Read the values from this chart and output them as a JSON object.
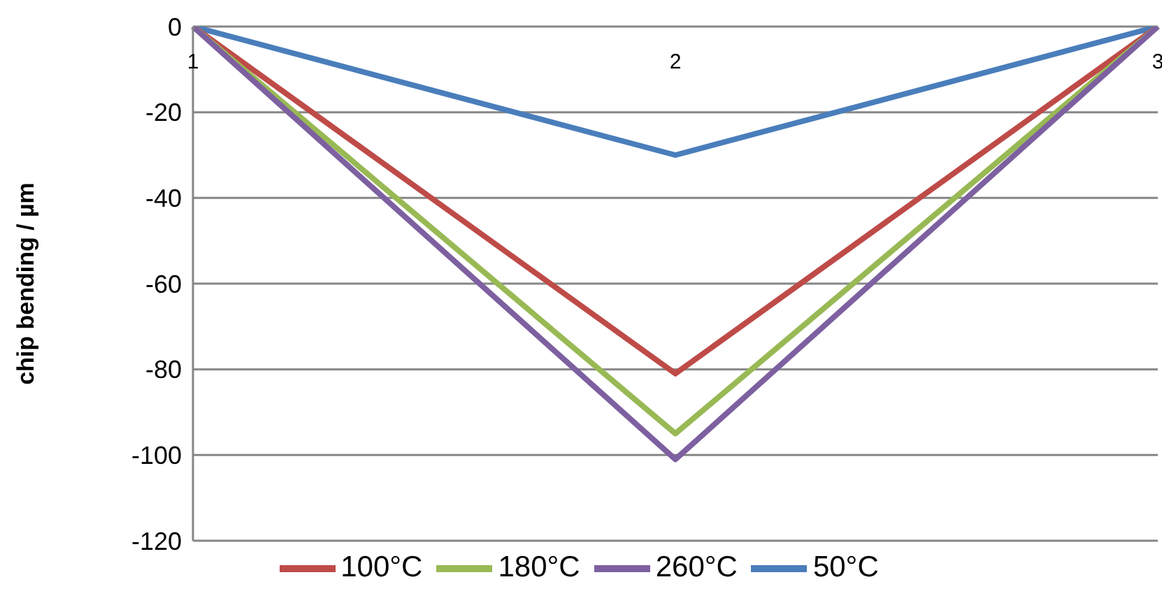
{
  "chart_data": {
    "type": "line",
    "ylabel": "chip bending / µm",
    "categories": [
      "1",
      "2",
      "3"
    ],
    "series": [
      {
        "name": "50°C",
        "color": "#4a7ebb",
        "values": [
          0,
          -30,
          0
        ]
      },
      {
        "name": "100°C",
        "color": "#be4b48",
        "values": [
          0,
          -81,
          0
        ]
      },
      {
        "name": "180°C",
        "color": "#98b954",
        "values": [
          0,
          -95,
          0
        ]
      },
      {
        "name": "260°C",
        "color": "#7d60a0",
        "values": [
          0,
          -101,
          0
        ]
      }
    ],
    "ylim": [
      -120,
      0
    ],
    "yticks": [
      -120,
      -100,
      -80,
      -60,
      -40,
      -20,
      0
    ],
    "grid": "y",
    "legend": "bottom",
    "marker": "none",
    "line_style": "solid"
  }
}
